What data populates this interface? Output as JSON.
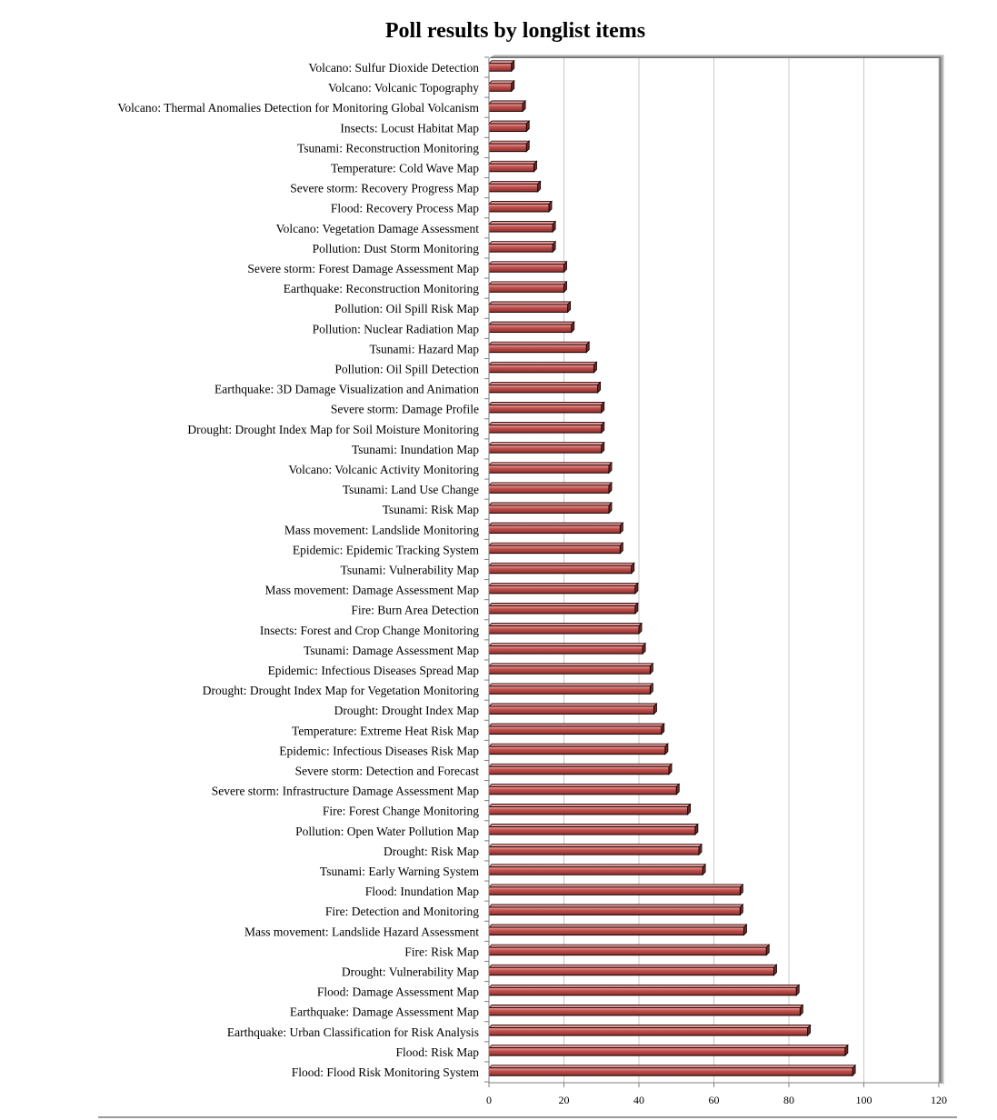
{
  "colors": {
    "bar_fill": "#c0504d",
    "bar_highlight": "#f4b0ae",
    "bar_edge": "#1a0000",
    "gridline": "#c8c8c8",
    "axis": "#7f7f7f",
    "frame_shadow": "#9a9a9a"
  },
  "chart_data": {
    "type": "bar",
    "orientation": "horizontal",
    "title": "Poll results by longlist items",
    "xlabel": "",
    "ylabel": "",
    "xlim": [
      0,
      120
    ],
    "xticks": [
      0,
      20,
      40,
      60,
      80,
      100,
      120
    ],
    "grid": "vertical",
    "legend": "none",
    "categories": [
      "Volcano: Sulfur Dioxide Detection",
      "Volcano: Volcanic Topography",
      "Volcano: Thermal Anomalies Detection for Monitoring Global Volcanism",
      "Insects: Locust Habitat Map",
      "Tsunami: Reconstruction Monitoring",
      "Temperature: Cold Wave Map",
      "Severe storm: Recovery Progress Map",
      "Flood: Recovery Process Map",
      "Volcano: Vegetation Damage Assessment",
      "Pollution: Dust Storm Monitoring",
      "Severe storm: Forest Damage Assessment Map",
      "Earthquake: Reconstruction Monitoring",
      "Pollution: Oil Spill Risk Map",
      "Pollution: Nuclear Radiation Map",
      "Tsunami: Hazard Map",
      "Pollution: Oil Spill Detection",
      "Earthquake: 3D Damage Visualization and Animation",
      "Severe storm: Damage Profile",
      "Drought: Drought Index Map for Soil Moisture Monitoring",
      "Tsunami: Inundation Map",
      "Volcano: Volcanic Activity Monitoring",
      "Tsunami: Land Use Change",
      "Tsunami: Risk Map",
      "Mass movement: Landslide Monitoring",
      "Epidemic: Epidemic Tracking System",
      "Tsunami: Vulnerability Map",
      "Mass movement: Damage Assessment Map",
      "Fire: Burn Area Detection",
      "Insects: Forest and Crop Change Monitoring",
      "Tsunami: Damage Assessment Map",
      "Epidemic: Infectious Diseases Spread Map",
      "Drought: Drought Index Map for Vegetation Monitoring",
      "Drought: Drought Index Map",
      "Temperature: Extreme Heat Risk Map",
      "Epidemic: Infectious Diseases Risk Map",
      "Severe storm: Detection and Forecast",
      "Severe storm: Infrastructure Damage Assessment Map",
      "Fire: Forest Change Monitoring",
      "Pollution: Open Water Pollution Map",
      "Drought: Risk Map",
      "Tsunami: Early Warning System",
      "Flood: Inundation Map",
      "Fire: Detection and Monitoring",
      "Mass movement: Landslide Hazard Assessment",
      "Fire: Risk Map",
      "Drought: Vulnerability Map",
      "Flood: Damage Assessment Map",
      "Earthquake: Damage Assessment Map",
      "Earthquake: Urban Classification for Risk Analysis",
      "Flood: Risk Map",
      "Flood: Flood Risk Monitoring System"
    ],
    "values": [
      6,
      6,
      9,
      10,
      10,
      12,
      13,
      16,
      17,
      17,
      20,
      20,
      21,
      22,
      26,
      28,
      29,
      30,
      30,
      30,
      32,
      32,
      32,
      35,
      35,
      38,
      39,
      39,
      40,
      41,
      43,
      43,
      44,
      46,
      47,
      48,
      50,
      53,
      55,
      56,
      57,
      67,
      67,
      68,
      74,
      76,
      82,
      83,
      85,
      95,
      97
    ]
  }
}
